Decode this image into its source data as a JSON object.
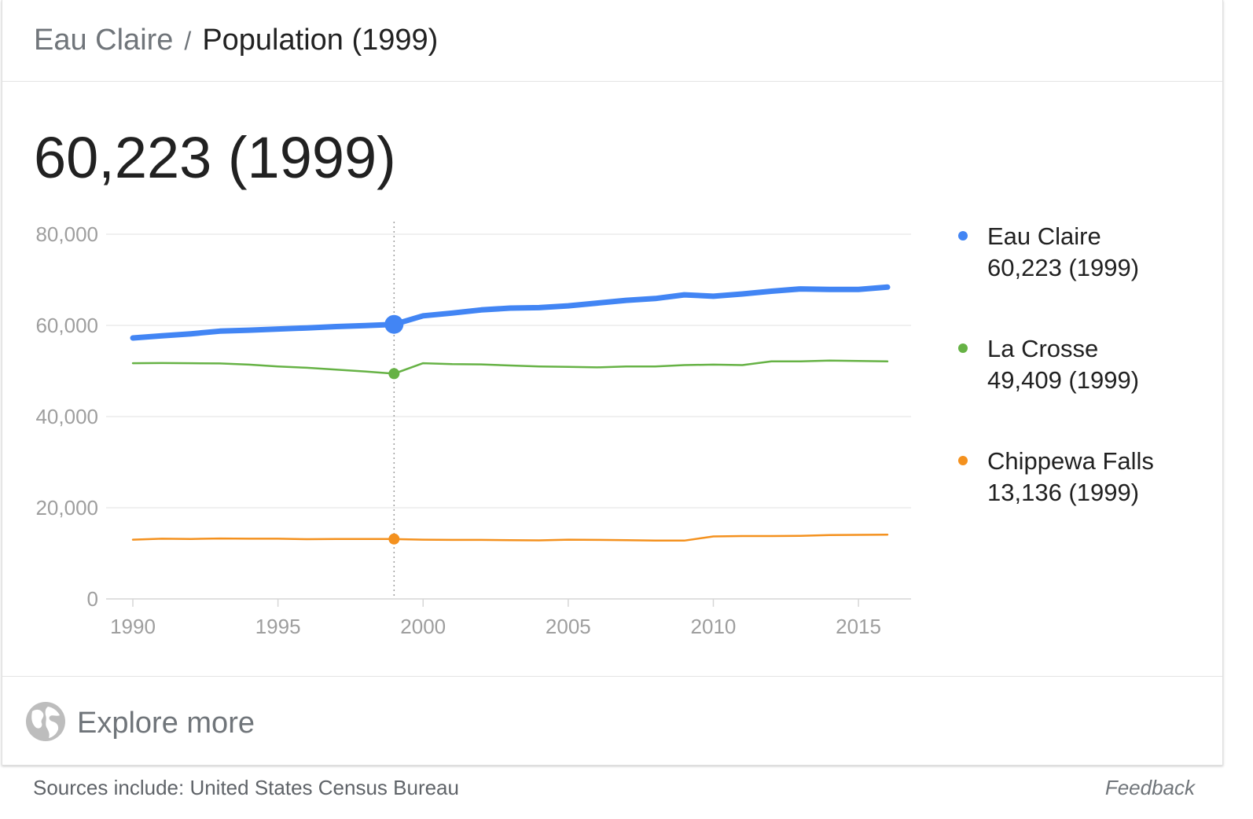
{
  "header": {
    "place": "Eau Claire",
    "separator": "/",
    "metric": "Population (1999)"
  },
  "headline_value": "60,223 (1999)",
  "legend": [
    {
      "name": "Eau Claire",
      "value": "60,223 (1999)",
      "color": "#4285f4"
    },
    {
      "name": "La Crosse",
      "value": "49,409 (1999)",
      "color": "#66b245"
    },
    {
      "name": "Chippewa Falls",
      "value": "13,136 (1999)",
      "color": "#f4911e"
    }
  ],
  "explore": {
    "label": "Explore more",
    "icon": "globe-icon"
  },
  "footer": {
    "sources": "Sources include: United States Census Bureau",
    "feedback": "Feedback"
  },
  "chart_data": {
    "type": "line",
    "x": [
      1990,
      1991,
      1992,
      1993,
      1994,
      1995,
      1996,
      1997,
      1998,
      1999,
      2000,
      2001,
      2002,
      2003,
      2004,
      2005,
      2006,
      2007,
      2008,
      2009,
      2010,
      2011,
      2012,
      2013,
      2014,
      2015,
      2016
    ],
    "series": [
      {
        "name": "Eau Claire",
        "color": "#4285f4",
        "values": [
          57250,
          57700,
          58150,
          58750,
          58950,
          59200,
          59450,
          59750,
          59950,
          60223,
          62100,
          62700,
          63400,
          63800,
          63900,
          64300,
          64900,
          65500,
          65900,
          66700,
          66400,
          66900,
          67500,
          68000,
          67900,
          67900,
          68400
        ]
      },
      {
        "name": "La Crosse",
        "color": "#66b245",
        "values": [
          51700,
          51750,
          51700,
          51650,
          51400,
          51000,
          50700,
          50300,
          49900,
          49409,
          51700,
          51500,
          51450,
          51200,
          51000,
          50900,
          50800,
          51000,
          51000,
          51300,
          51400,
          51300,
          52100,
          52100,
          52300,
          52200,
          52100
        ]
      },
      {
        "name": "Chippewa Falls",
        "color": "#f4911e",
        "values": [
          13000,
          13200,
          13150,
          13250,
          13200,
          13200,
          13100,
          13150,
          13150,
          13136,
          13000,
          12950,
          12950,
          12900,
          12850,
          13000,
          12950,
          12900,
          12800,
          12800,
          13700,
          13800,
          13800,
          13850,
          14000,
          14050,
          14100
        ]
      }
    ],
    "highlight_x": 1999,
    "xticks": [
      1990,
      1995,
      2000,
      2005,
      2010,
      2015
    ],
    "yticks": [
      0,
      20000,
      40000,
      60000,
      80000
    ],
    "ytick_labels": [
      "0",
      "20,000",
      "40,000",
      "60,000",
      "80,000"
    ],
    "xlim": [
      1990,
      2016
    ],
    "ylim": [
      0,
      80000
    ],
    "grid": true,
    "legend_position": "right"
  }
}
